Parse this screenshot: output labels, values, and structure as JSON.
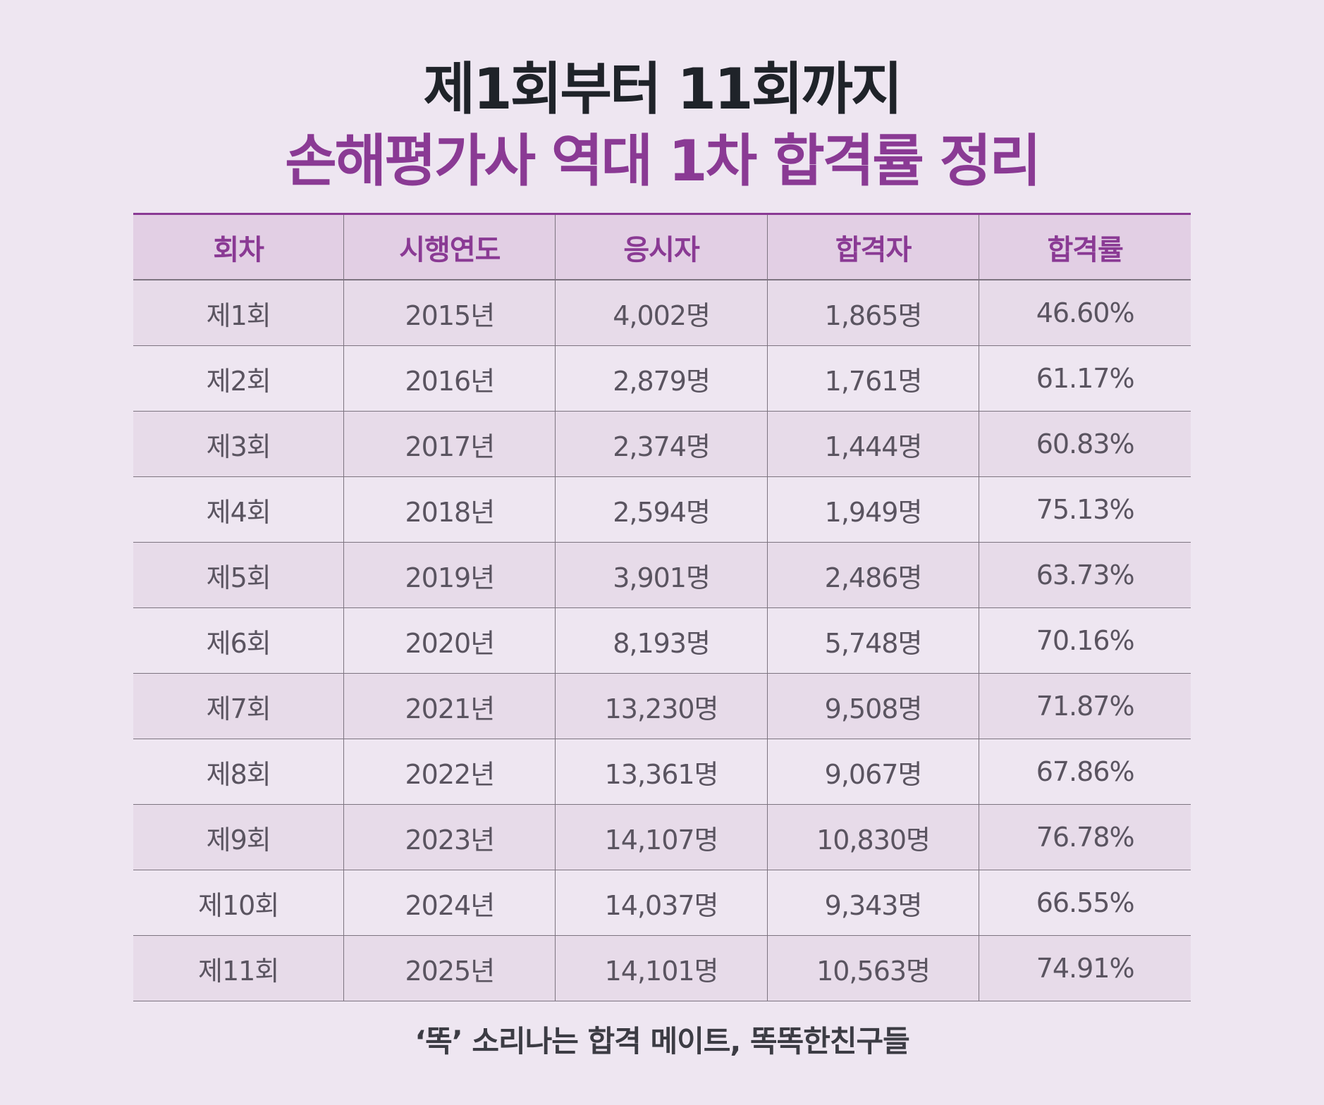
{
  "title": {
    "line1": "제1회부터 11회까지",
    "line2": "손해평가사 역대 1차 합격률 정리"
  },
  "table": {
    "headers": [
      "회차",
      "시행연도",
      "응시자",
      "합격자",
      "합격률"
    ],
    "rows": [
      [
        "제1회",
        "2015년",
        "4,002명",
        "1,865명",
        "46.60%"
      ],
      [
        "제2회",
        "2016년",
        "2,879명",
        "1,761명",
        "61.17%"
      ],
      [
        "제3회",
        "2017년",
        "2,374명",
        "1,444명",
        "60.83%"
      ],
      [
        "제4회",
        "2018년",
        "2,594명",
        "1,949명",
        "75.13%"
      ],
      [
        "제5회",
        "2019년",
        "3,901명",
        "2,486명",
        "63.73%"
      ],
      [
        "제6회",
        "2020년",
        "8,193명",
        "5,748명",
        "70.16%"
      ],
      [
        "제7회",
        "2021년",
        "13,230명",
        "9,508명",
        "71.87%"
      ],
      [
        "제8회",
        "2022년",
        "13,361명",
        "9,067명",
        "67.86%"
      ],
      [
        "제9회",
        "2023년",
        "14,107명",
        "10,830명",
        "76.78%"
      ],
      [
        "제10회",
        "2024년",
        "14,037명",
        "9,343명",
        "66.55%"
      ],
      [
        "제11회",
        "2025년",
        "14,101명",
        "10,563명",
        "74.91%"
      ]
    ]
  },
  "footer": "‘똑’ 소리나는 합격 메이트, 똑똑한친구들",
  "colors": {
    "accent": "#8a3a94",
    "background": "#eee6f1",
    "header_bg": "#e2cfe4"
  }
}
